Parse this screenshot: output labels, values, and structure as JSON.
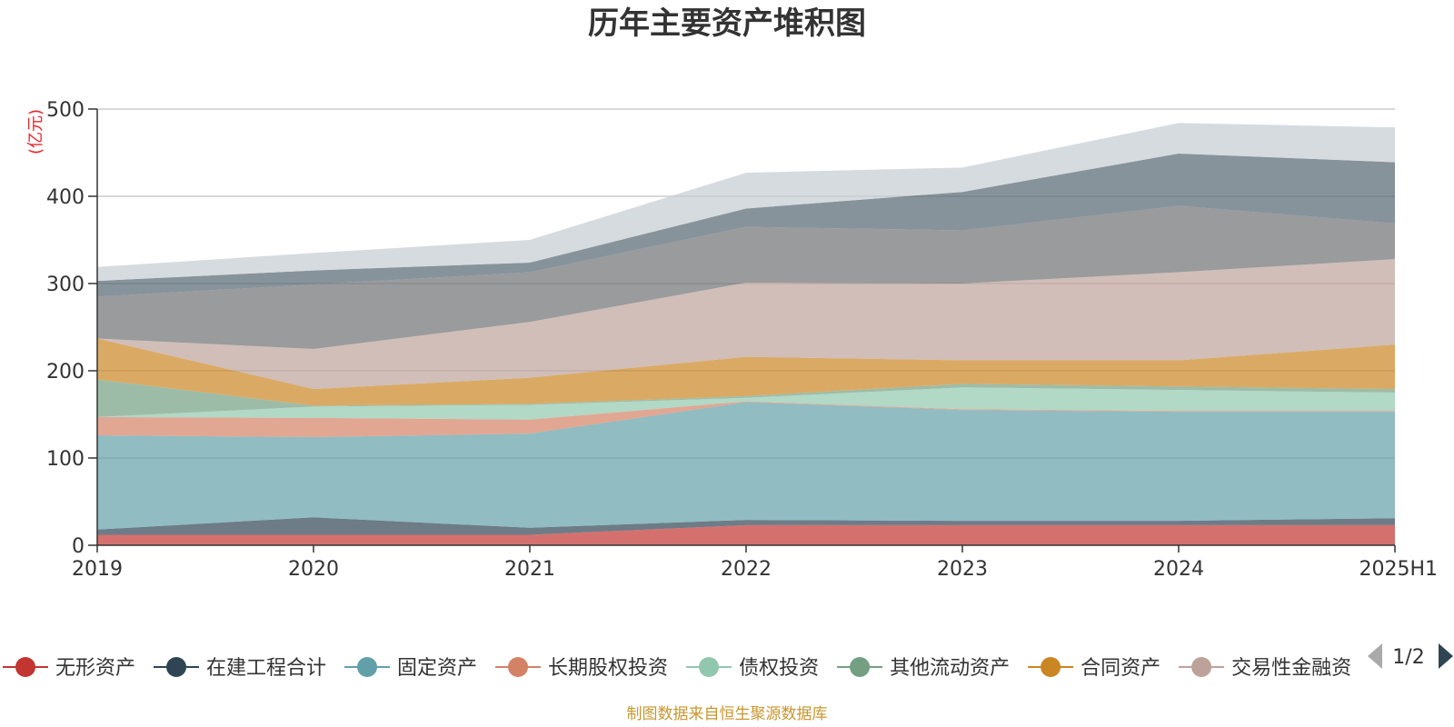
{
  "chart_data": {
    "type": "area",
    "stacked": true,
    "title": "历年主要资产堆积图",
    "ylabel": "(亿元)",
    "ylim": [
      0,
      500
    ],
    "yticks": [
      0,
      100,
      200,
      300,
      400,
      500
    ],
    "grid": true,
    "legend_position": "bottom",
    "categories": [
      "2019",
      "2020",
      "2021",
      "2022",
      "2023",
      "2024",
      "2025H1"
    ],
    "series": [
      {
        "name": "无形资产",
        "color": "#c23531",
        "values": [
          12,
          12,
          12,
          23,
          23,
          23,
          23
        ]
      },
      {
        "name": "在建工程合计",
        "color": "#2f4554",
        "values": [
          6,
          20,
          8,
          6,
          5,
          5,
          8
        ]
      },
      {
        "name": "固定资产",
        "color": "#61a0a8",
        "values": [
          108,
          92,
          108,
          135,
          127,
          125,
          122
        ]
      },
      {
        "name": "长期股权投资",
        "color": "#d48265",
        "values": [
          21,
          22,
          16,
          1,
          1,
          1,
          1
        ]
      },
      {
        "name": "债权投资",
        "color": "#91c7ae",
        "values": [
          0,
          13,
          17,
          4,
          25,
          24,
          21
        ]
      },
      {
        "name": "其他流动资产",
        "color": "#749f83",
        "values": [
          43,
          1,
          1,
          2,
          4,
          4,
          4
        ]
      },
      {
        "name": "合同资产",
        "color": "#ca8622",
        "values": [
          47,
          19,
          30,
          45,
          27,
          30,
          51
        ]
      },
      {
        "name": "交易性金融资产",
        "color": "#bda29a",
        "values": [
          0,
          46,
          64,
          85,
          88,
          101,
          98
        ]
      },
      {
        "series_index": 8,
        "color": "#6e7074",
        "values": [
          48,
          74,
          57,
          64,
          61,
          76,
          41
        ]
      },
      {
        "series_index": 9,
        "color": "#546570",
        "values": [
          18,
          16,
          11,
          21,
          44,
          60,
          70
        ]
      },
      {
        "series_index": 10,
        "color": "#c4ccd3",
        "values": [
          16,
          20,
          26,
          41,
          28,
          35,
          40
        ]
      }
    ]
  },
  "legend": {
    "page_indicator": "1/2"
  },
  "source_note": "制图数据来自恒生聚源数据库"
}
